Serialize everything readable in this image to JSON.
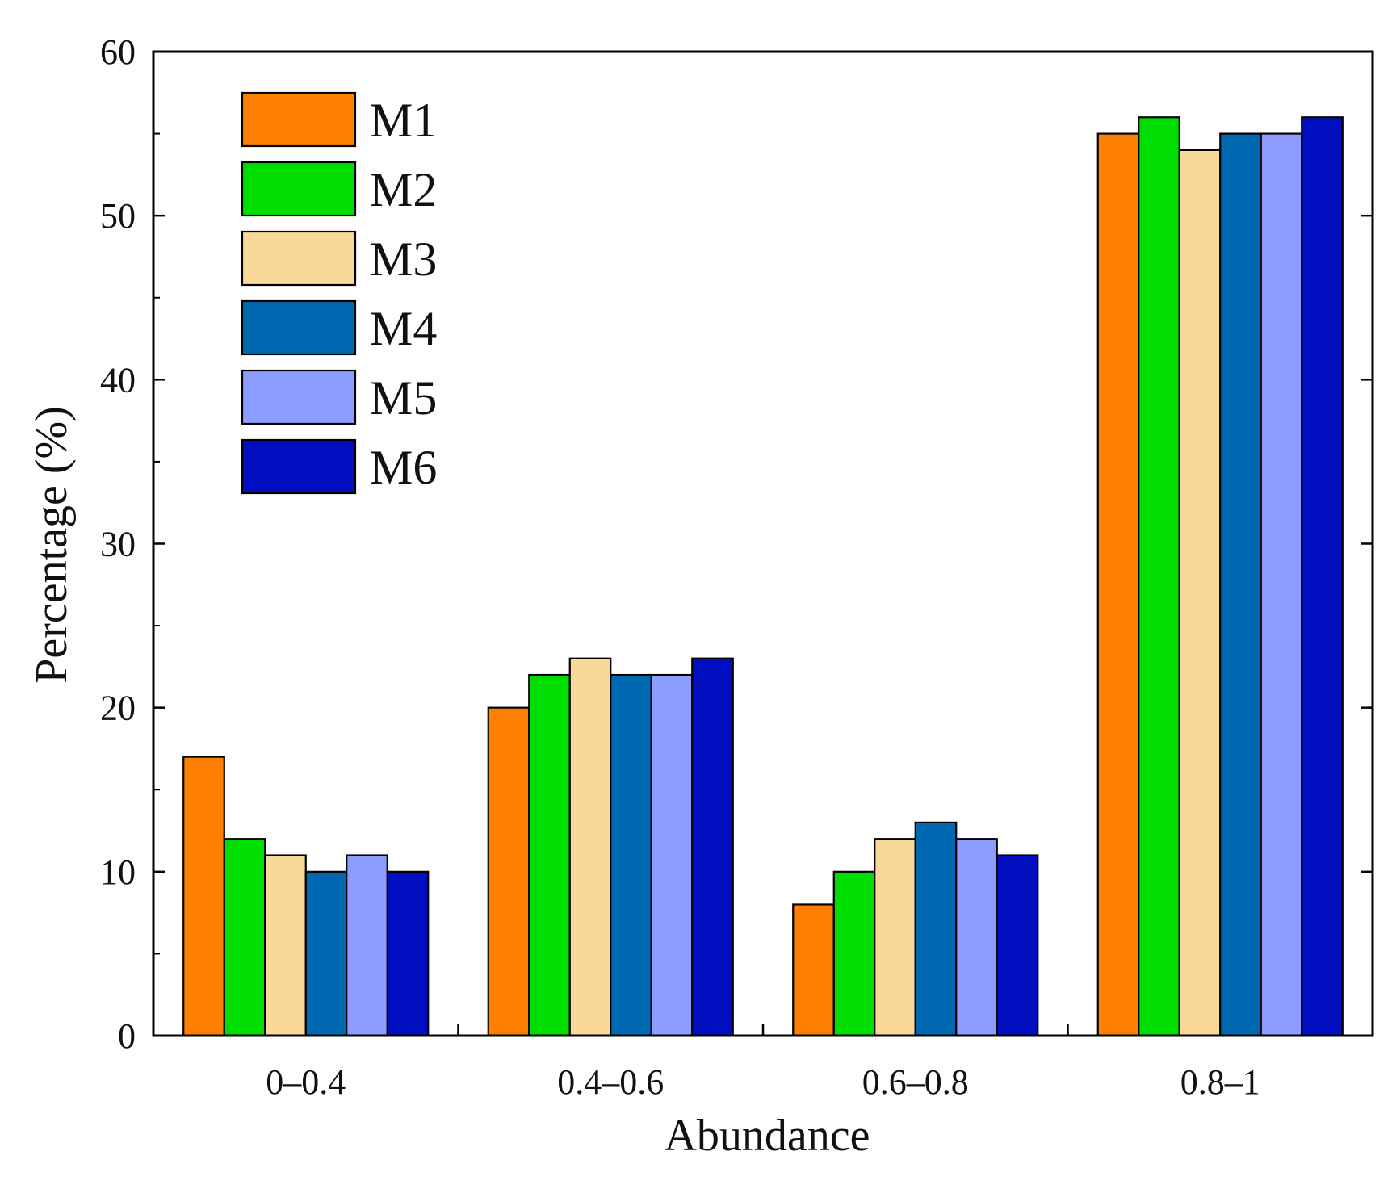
{
  "chart_data": {
    "type": "bar",
    "title": "",
    "xlabel": "Abundance",
    "ylabel": "Percentage (%)",
    "ylim": [
      0,
      60
    ],
    "yticks": [
      "0",
      "10",
      "20",
      "30",
      "40",
      "50",
      "60"
    ],
    "grid": false,
    "legend_position": "top-left",
    "categories": [
      "0–0.4",
      "0.4–0.6",
      "0.6–0.8",
      "0.8–1"
    ],
    "series": [
      {
        "name": "M1",
        "color": "#FF8000",
        "values": [
          17,
          20,
          8,
          55
        ]
      },
      {
        "name": "M2",
        "color": "#00DD00",
        "values": [
          12,
          22,
          10,
          56
        ]
      },
      {
        "name": "M3",
        "color": "#FAD898",
        "values": [
          11,
          23,
          12,
          54
        ]
      },
      {
        "name": "M4",
        "color": "#0068B0",
        "values": [
          10,
          22,
          13,
          55
        ]
      },
      {
        "name": "M5",
        "color": "#8C9CFF",
        "values": [
          11,
          22,
          12,
          55
        ]
      },
      {
        "name": "M6",
        "color": "#0010C0",
        "values": [
          10,
          23,
          11,
          56
        ]
      }
    ]
  }
}
